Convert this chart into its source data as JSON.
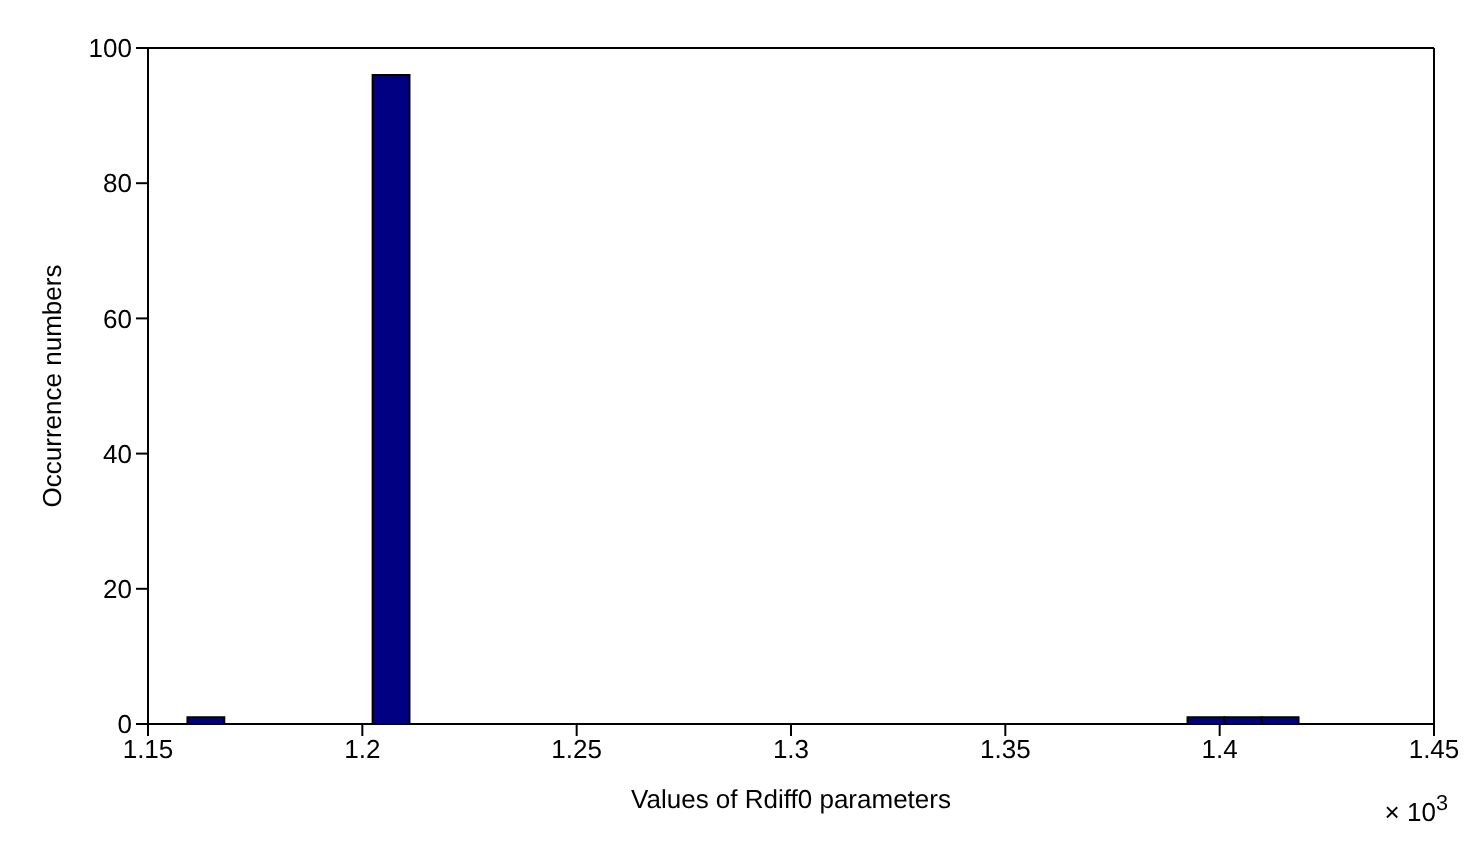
{
  "chart_data": {
    "type": "histogram",
    "xlabel": "Values of Rdiff0 parameters",
    "ylabel": "Occurrence numbers",
    "bins": [
      1.1592,
      1.1678,
      1.1765,
      1.1851,
      1.1938,
      1.2024,
      1.211,
      1.2197,
      1.2283,
      1.237,
      1.2456,
      1.2542,
      1.2629,
      1.2715,
      1.2802,
      1.2888,
      1.2974,
      1.3061,
      1.3147,
      1.3234,
      1.332,
      1.3406,
      1.3493,
      1.3579,
      1.3666,
      1.3752,
      1.3838,
      1.3925,
      1.4011,
      1.4098,
      1.4184
    ],
    "values": [
      1,
      0,
      0,
      0,
      0,
      96,
      0,
      0,
      0,
      0,
      0,
      0,
      0,
      0,
      0,
      0,
      0,
      0,
      0,
      0,
      0,
      0,
      0,
      0,
      0,
      0,
      0,
      1,
      1,
      1
    ],
    "color": "#000080",
    "xlim": [
      1.15,
      1.45
    ],
    "xticks": [
      1.15,
      1.2,
      1.25,
      1.3,
      1.35,
      1.4,
      1.45
    ],
    "ylim": [
      0,
      100
    ],
    "yticks": [
      0,
      20,
      40,
      60,
      80,
      100
    ],
    "annotations": [
      "× 10$^{3}$"
    ]
  }
}
